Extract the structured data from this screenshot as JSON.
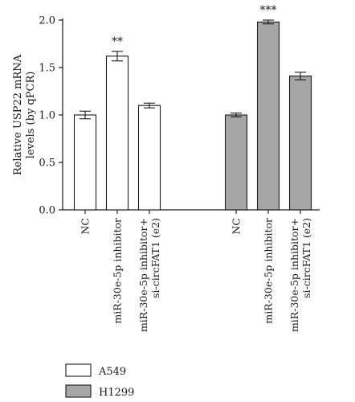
{
  "chart_data": {
    "type": "bar",
    "ylabel": "Relative USP22 mRNA levels (by qPCR)",
    "ylabel_lines": [
      "Relative USP22 mRNA",
      "levels (by qPCR)"
    ],
    "ylim": [
      0,
      2.0
    ],
    "yticks": [
      "0.0",
      "0.5",
      "1.0",
      "1.5",
      "2.0"
    ],
    "grid": false,
    "legend_position": "bottom-left",
    "categories": [
      [
        "NC"
      ],
      [
        "miR-30e-5p inhibitor"
      ],
      [
        "miR-30e-5p inhibitor+",
        "si-circFAT1 (e2)"
      ]
    ],
    "series": [
      {
        "name": "A549",
        "color": "#ffffff",
        "values": [
          1.0,
          1.62,
          1.1
        ],
        "errors": [
          0.04,
          0.05,
          0.025
        ],
        "annotations": [
          "",
          "**",
          ""
        ]
      },
      {
        "name": "H1299",
        "color": "#a6a6a6",
        "values": [
          1.0,
          1.98,
          1.41
        ],
        "errors": [
          0.02,
          0.02,
          0.04
        ],
        "annotations": [
          "",
          "***",
          ""
        ]
      }
    ]
  }
}
